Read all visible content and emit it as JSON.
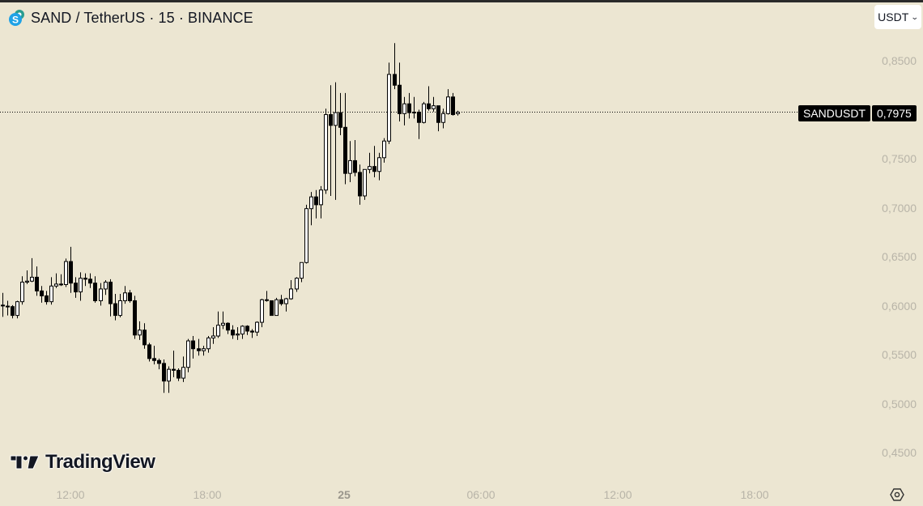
{
  "header": {
    "title": "SAND / TetherUS · 15 · BINANCE",
    "symbol_icon": "sand-coin-icon",
    "currency_button": "USDT",
    "currency_chevron": "⌄"
  },
  "last_price": {
    "symbol": "SANDUSDT",
    "value": "0,7975"
  },
  "price_axis": [
    "0,8500",
    "0,7500",
    "0,7000",
    "0,6500",
    "0,6000",
    "0,5500",
    "0,5000",
    "0,4500"
  ],
  "time_axis": [
    {
      "label": "12:00",
      "x": 87,
      "bold": false
    },
    {
      "label": "18:00",
      "x": 256,
      "bold": false
    },
    {
      "label": "25",
      "x": 425,
      "bold": true
    },
    {
      "label": "06:00",
      "x": 594,
      "bold": false
    },
    {
      "label": "12:00",
      "x": 763,
      "bold": false
    },
    {
      "label": "18:00",
      "x": 932,
      "bold": false
    }
  ],
  "branding": {
    "logo_text": "TradingView"
  },
  "colors": {
    "background": "#ece6d2",
    "up_fill": "#ffffff",
    "down_fill": "#000000",
    "wick": "#000000",
    "axis_text": "#b8b4a8"
  },
  "chart_data": {
    "type": "candlestick",
    "title": "SAND / TetherUS · 15 · BINANCE",
    "xlabel": "",
    "ylabel": "USDT",
    "ylim": [
      0.43,
      0.875
    ],
    "x_ticks": [
      "12:00",
      "18:00",
      "25",
      "06:00",
      "12:00",
      "18:00"
    ],
    "y_ticks": [
      0.45,
      0.5,
      0.55,
      0.6,
      0.65,
      0.7,
      0.75,
      0.8,
      0.85
    ],
    "last_price": 0.7975,
    "candles": [
      [
        0.6005,
        0.6005,
        0.613,
        0.5885
      ],
      [
        0.5995,
        0.599,
        0.605,
        0.59
      ],
      [
        0.599,
        0.59,
        0.6005,
        0.587
      ],
      [
        0.59,
        0.604,
        0.605,
        0.587
      ],
      [
        0.604,
        0.624,
        0.63,
        0.601
      ],
      [
        0.624,
        0.625,
        0.636,
        0.622
      ],
      [
        0.625,
        0.629,
        0.6485,
        0.624
      ],
      [
        0.629,
        0.615,
        0.64,
        0.61
      ],
      [
        0.615,
        0.61,
        0.62,
        0.603
      ],
      [
        0.61,
        0.604,
        0.615,
        0.601
      ],
      [
        0.604,
        0.62,
        0.629,
        0.601
      ],
      [
        0.62,
        0.622,
        0.633,
        0.618
      ],
      [
        0.622,
        0.6215,
        0.632,
        0.62
      ],
      [
        0.6215,
        0.645,
        0.648,
        0.619
      ],
      [
        0.645,
        0.623,
        0.66,
        0.613
      ],
      [
        0.623,
        0.614,
        0.629,
        0.608
      ],
      [
        0.614,
        0.628,
        0.634,
        0.605
      ],
      [
        0.628,
        0.627,
        0.633,
        0.62
      ],
      [
        0.627,
        0.623,
        0.633,
        0.618
      ],
      [
        0.623,
        0.605,
        0.63,
        0.603
      ],
      [
        0.605,
        0.617,
        0.623,
        0.6
      ],
      [
        0.617,
        0.624,
        0.626,
        0.611
      ],
      [
        0.624,
        0.602,
        0.627,
        0.589
      ],
      [
        0.602,
        0.59,
        0.612,
        0.585
      ],
      [
        0.59,
        0.605,
        0.612,
        0.588
      ],
      [
        0.605,
        0.613,
        0.62,
        0.602
      ],
      [
        0.613,
        0.605,
        0.616,
        0.603
      ],
      [
        0.605,
        0.57,
        0.61,
        0.566
      ],
      [
        0.57,
        0.575,
        0.584,
        0.565
      ],
      [
        0.575,
        0.56,
        0.582,
        0.556
      ],
      [
        0.56,
        0.546,
        0.562,
        0.543
      ],
      [
        0.546,
        0.544,
        0.559,
        0.54
      ],
      [
        0.544,
        0.541,
        0.546,
        0.535
      ],
      [
        0.541,
        0.523,
        0.545,
        0.511
      ],
      [
        0.523,
        0.535,
        0.538,
        0.511
      ],
      [
        0.535,
        0.534,
        0.554,
        0.527
      ],
      [
        0.534,
        0.526,
        0.536,
        0.523
      ],
      [
        0.526,
        0.537,
        0.548,
        0.522
      ],
      [
        0.537,
        0.564,
        0.566,
        0.532
      ],
      [
        0.564,
        0.556,
        0.569,
        0.546
      ],
      [
        0.556,
        0.554,
        0.566,
        0.549
      ],
      [
        0.554,
        0.556,
        0.559,
        0.549
      ],
      [
        0.556,
        0.567,
        0.569,
        0.552
      ],
      [
        0.567,
        0.569,
        0.578,
        0.561
      ],
      [
        0.569,
        0.58,
        0.594,
        0.567
      ],
      [
        0.58,
        0.582,
        0.594,
        0.576
      ],
      [
        0.582,
        0.575,
        0.583,
        0.571
      ],
      [
        0.575,
        0.57,
        0.58,
        0.566
      ],
      [
        0.57,
        0.571,
        0.578,
        0.565
      ],
      [
        0.571,
        0.579,
        0.58,
        0.566
      ],
      [
        0.579,
        0.574,
        0.58,
        0.57
      ],
      [
        0.574,
        0.573,
        0.576,
        0.567
      ],
      [
        0.573,
        0.583,
        0.584,
        0.569
      ],
      [
        0.583,
        0.606,
        0.607,
        0.578
      ],
      [
        0.606,
        0.606,
        0.615,
        0.604
      ],
      [
        0.605,
        0.59,
        0.605,
        0.59
      ],
      [
        0.59,
        0.606,
        0.608,
        0.59
      ],
      [
        0.606,
        0.602,
        0.611,
        0.6
      ],
      [
        0.602,
        0.607,
        0.608,
        0.594
      ],
      [
        0.607,
        0.617,
        0.626,
        0.606
      ],
      [
        0.617,
        0.628,
        0.629,
        0.614
      ],
      [
        0.628,
        0.644,
        0.644,
        0.624
      ],
      [
        0.644,
        0.699,
        0.703,
        0.643
      ],
      [
        0.699,
        0.711,
        0.716,
        0.682
      ],
      [
        0.711,
        0.703,
        0.718,
        0.689
      ],
      [
        0.703,
        0.718,
        0.722,
        0.689
      ],
      [
        0.718,
        0.795,
        0.801,
        0.714
      ],
      [
        0.795,
        0.784,
        0.825,
        0.712
      ],
      [
        0.784,
        0.797,
        0.828,
        0.708
      ],
      [
        0.797,
        0.782,
        0.817,
        0.774
      ],
      [
        0.782,
        0.735,
        0.817,
        0.724
      ],
      [
        0.735,
        0.748,
        0.768,
        0.726
      ],
      [
        0.748,
        0.736,
        0.769,
        0.732
      ],
      [
        0.736,
        0.712,
        0.744,
        0.703
      ],
      [
        0.712,
        0.739,
        0.736,
        0.708
      ],
      [
        0.739,
        0.742,
        0.756,
        0.735
      ],
      [
        0.742,
        0.737,
        0.763,
        0.731
      ],
      [
        0.737,
        0.751,
        0.756,
        0.728
      ],
      [
        0.751,
        0.768,
        0.771,
        0.746
      ],
      [
        0.768,
        0.836,
        0.848,
        0.765
      ],
      [
        0.836,
        0.825,
        0.868,
        0.821
      ],
      [
        0.825,
        0.796,
        0.848,
        0.788
      ],
      [
        0.796,
        0.806,
        0.813,
        0.784
      ],
      [
        0.806,
        0.797,
        0.817,
        0.791
      ],
      [
        0.797,
        0.7975,
        0.813,
        0.791
      ],
      [
        0.7975,
        0.787,
        0.8,
        0.77
      ],
      [
        0.787,
        0.806,
        0.808,
        0.786
      ],
      [
        0.806,
        0.801,
        0.824,
        0.799
      ],
      [
        0.801,
        0.804,
        0.813,
        0.798
      ],
      [
        0.804,
        0.787,
        0.804,
        0.778
      ],
      [
        0.787,
        0.796,
        0.801,
        0.781
      ],
      [
        0.796,
        0.813,
        0.821,
        0.795
      ],
      [
        0.813,
        0.795,
        0.817,
        0.794
      ],
      [
        0.796,
        0.7975,
        0.799,
        0.794
      ]
    ]
  }
}
